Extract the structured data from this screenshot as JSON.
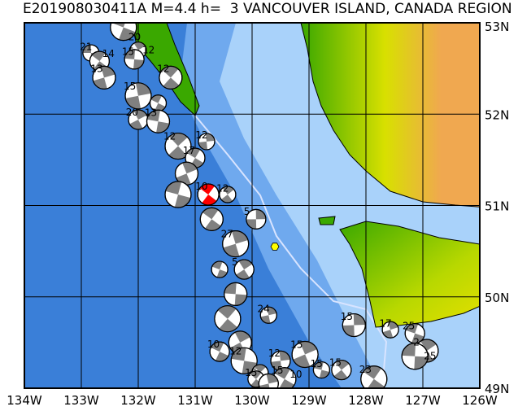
{
  "title": "E201908030411A M=4.4 h=  3 VANCOUVER ISLAND, CANADA REGION",
  "map": {
    "lon_range": [
      -134,
      -126
    ],
    "lat_range": [
      49,
      53
    ],
    "lon_ticks": [
      "134W",
      "133W",
      "132W",
      "131W",
      "130W",
      "129W",
      "128W",
      "127W",
      "126W"
    ],
    "lat_ticks": [
      "53N",
      "52N",
      "51N",
      "50N",
      "49N"
    ],
    "colors": {
      "deep_ocean": "#3a7fd8",
      "shelf": "#6fa9ee",
      "shallow": "#a9d2fa",
      "land_low": "#3aa800",
      "land_mid": "#d8e000",
      "land_high": "#f0a850",
      "focal_highlight": "#ff0000",
      "focal_other": "#808080"
    },
    "main_event": {
      "lon": -130.77,
      "lat": 51.12,
      "label": "10"
    },
    "station_marker": {
      "lon": -129.6,
      "lat": 50.55,
      "color": "#ffff00"
    },
    "events": [
      {
        "lon": -132.83,
        "lat": 52.67,
        "label": "21"
      },
      {
        "lon": -132.68,
        "lat": 52.58,
        "label": "14"
      },
      {
        "lon": -132.6,
        "lat": 52.4,
        "label": "13"
      },
      {
        "lon": -132.26,
        "lat": 52.95,
        "label": "20"
      },
      {
        "lon": -132.0,
        "lat": 52.7,
        "label": "12"
      },
      {
        "lon": -132.07,
        "lat": 52.6,
        "label": "15"
      },
      {
        "lon": -131.43,
        "lat": 52.4,
        "label": "12"
      },
      {
        "lon": -132.0,
        "lat": 52.2,
        "label": "15"
      },
      {
        "lon": -131.65,
        "lat": 52.12,
        "label": ""
      },
      {
        "lon": -132.0,
        "lat": 51.94,
        "label": "20"
      },
      {
        "lon": -131.65,
        "lat": 51.92,
        "label": "13"
      },
      {
        "lon": -131.3,
        "lat": 51.65,
        "label": "12"
      },
      {
        "lon": -130.8,
        "lat": 51.7,
        "label": "12"
      },
      {
        "lon": -131.0,
        "lat": 51.52,
        "label": "17"
      },
      {
        "lon": -131.15,
        "lat": 51.35,
        "label": ""
      },
      {
        "lon": -131.3,
        "lat": 51.12,
        "label": ""
      },
      {
        "lon": -130.43,
        "lat": 51.12,
        "label": "12"
      },
      {
        "lon": -129.93,
        "lat": 50.85,
        "label": "5"
      },
      {
        "lon": -130.71,
        "lat": 50.85,
        "label": ""
      },
      {
        "lon": -130.29,
        "lat": 50.58,
        "label": "27"
      },
      {
        "lon": -130.57,
        "lat": 50.3,
        "label": ""
      },
      {
        "lon": -130.14,
        "lat": 50.3,
        "label": "5"
      },
      {
        "lon": -130.29,
        "lat": 50.03,
        "label": ""
      },
      {
        "lon": -130.43,
        "lat": 49.76,
        "label": ""
      },
      {
        "lon": -129.71,
        "lat": 49.8,
        "label": "24"
      },
      {
        "lon": -130.57,
        "lat": 49.4,
        "label": "10"
      },
      {
        "lon": -130.21,
        "lat": 49.5,
        "label": ""
      },
      {
        "lon": -130.14,
        "lat": 49.3,
        "label": "12"
      },
      {
        "lon": -129.86,
        "lat": 49.17,
        "label": ""
      },
      {
        "lon": -129.5,
        "lat": 49.3,
        "label": "12"
      },
      {
        "lon": -129.43,
        "lat": 49.1,
        "label": "15"
      },
      {
        "lon": -129.07,
        "lat": 49.37,
        "label": "15"
      },
      {
        "lon": -128.78,
        "lat": 49.2,
        "label": "15"
      },
      {
        "lon": -128.43,
        "lat": 49.2,
        "label": "15"
      },
      {
        "lon": -128.21,
        "lat": 49.69,
        "label": "15"
      },
      {
        "lon": -127.86,
        "lat": 49.1,
        "label": "23"
      },
      {
        "lon": -127.57,
        "lat": 49.64,
        "label": "17"
      },
      {
        "lon": -127.14,
        "lat": 49.6,
        "label": "25"
      },
      {
        "lon": -126.93,
        "lat": 49.41,
        "label": "2"
      },
      {
        "lon": -127.14,
        "lat": 49.35,
        "label": "25"
      },
      {
        "lon": -129.93,
        "lat": 49.1,
        "label": "15"
      },
      {
        "lon": -129.71,
        "lat": 49.05,
        "label": "10"
      }
    ]
  }
}
